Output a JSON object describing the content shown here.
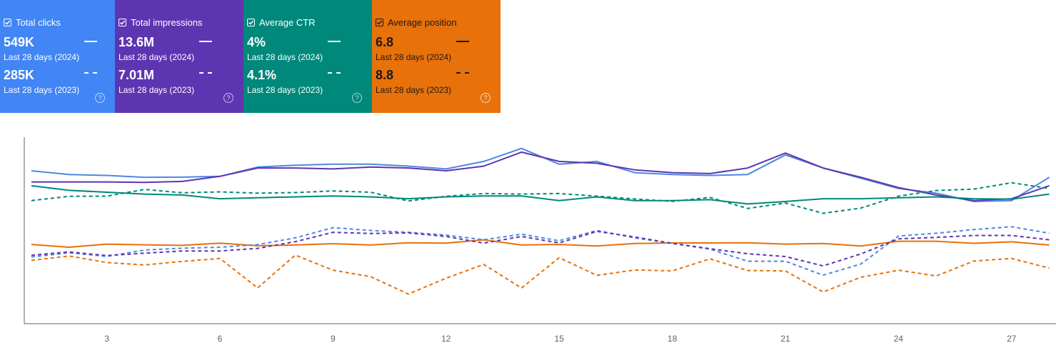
{
  "metrics": [
    {
      "label": "Total clicks",
      "current": "549K",
      "current_period": "Last 28 days (2024)",
      "previous": "285K",
      "previous_period": "Last 28 days (2023)",
      "color": "#4285f4"
    },
    {
      "label": "Total impressions",
      "current": "13.6M",
      "current_period": "Last 28 days (2024)",
      "previous": "7.01M",
      "previous_period": "Last 28 days (2023)",
      "color": "#5e35b1"
    },
    {
      "label": "Average CTR",
      "current": "4%",
      "current_period": "Last 28 days (2024)",
      "previous": "4.1%",
      "previous_period": "Last 28 days (2023)",
      "color": "#00897b"
    },
    {
      "label": "Average position",
      "current": "6.8",
      "current_period": "Last 28 days (2024)",
      "previous": "8.8",
      "previous_period": "Last 28 days (2023)",
      "color": "#e8710a"
    }
  ],
  "chart_data": {
    "type": "line",
    "x": [
      1,
      2,
      3,
      4,
      5,
      6,
      7,
      8,
      9,
      10,
      11,
      12,
      13,
      14,
      15,
      16,
      17,
      18,
      19,
      20,
      21,
      22,
      23,
      24,
      25,
      26,
      27,
      28
    ],
    "xticks": [
      "3",
      "6",
      "9",
      "12",
      "15",
      "18",
      "21",
      "24",
      "27"
    ],
    "xtick_values": [
      3,
      6,
      9,
      12,
      15,
      18,
      21,
      24,
      27
    ],
    "ylim": [
      0,
      100
    ],
    "series": [
      {
        "name": "Total clicks (2024)",
        "color": "#4e88e0",
        "dash": false,
        "values": [
          82,
          80,
          79.5,
          78.5,
          78.6,
          79,
          84,
          85,
          85.5,
          85.5,
          84.5,
          83,
          87,
          94,
          85.5,
          87,
          81,
          80,
          79.5,
          80,
          90.5,
          83.5,
          78,
          72.5,
          70,
          65.5,
          66,
          78.5
        ]
      },
      {
        "name": "Total impressions (2024)",
        "color": "#5e35b1",
        "dash": false,
        "values": [
          76,
          76,
          76,
          75.8,
          76.3,
          79,
          83.5,
          83.5,
          83,
          84,
          83.5,
          82,
          84.5,
          92,
          87,
          86,
          82.5,
          81,
          80.5,
          83.5,
          91.5,
          83.5,
          78.5,
          73,
          69,
          66,
          67,
          74
        ]
      },
      {
        "name": "Average CTR (2024)",
        "color": "#00897b",
        "dash": false,
        "values": [
          74,
          71.5,
          70.5,
          69.5,
          69,
          67,
          67.5,
          68,
          68.5,
          68,
          67,
          68,
          68.5,
          68.5,
          66,
          68,
          66,
          66,
          66.5,
          64.2,
          65.5,
          67,
          67,
          67.5,
          68,
          67,
          66.8,
          69.5
        ]
      },
      {
        "name": "Average position (2024)",
        "color": "#e8710a",
        "dash": false,
        "values": [
          42.5,
          41,
          42.7,
          42.3,
          42,
          43.2,
          41.8,
          42.2,
          42.9,
          42.2,
          43.4,
          43.2,
          45,
          42.2,
          42.5,
          41.7,
          43,
          43.3,
          43.3,
          43.4,
          42.7,
          43,
          41.7,
          44.2,
          44.2,
          43.1,
          43.9,
          42.2
        ]
      },
      {
        "name": "Total clicks (2023)",
        "color": "#4e88e0",
        "dash": true,
        "values": [
          35.8,
          38,
          36.1,
          39.5,
          40.5,
          41,
          42.4,
          46,
          51.5,
          50,
          49,
          47.5,
          45,
          48,
          44.5,
          50,
          46,
          43,
          40,
          33.5,
          33.5,
          26,
          32,
          47,
          48.5,
          50.5,
          52,
          48.5
        ]
      },
      {
        "name": "Total impressions (2023)",
        "color": "#5e35b1",
        "dash": true,
        "values": [
          36.7,
          38.5,
          36.5,
          37.8,
          39,
          39,
          40.4,
          44,
          49,
          48.4,
          48.7,
          46.8,
          43.2,
          46.8,
          43.3,
          49.5,
          46.5,
          43.1,
          40.2,
          37.5,
          36,
          31,
          37.4,
          45.5,
          46.3,
          47.3,
          47.3,
          45
        ]
      },
      {
        "name": "Average CTR (2023)",
        "color": "#00897b",
        "dash": true,
        "values": [
          66,
          68.3,
          68.4,
          72,
          70.2,
          70.7,
          70,
          70.3,
          71.2,
          70.5,
          65.8,
          68.3,
          69.8,
          69.5,
          69.8,
          68.4,
          66.9,
          65.6,
          67.7,
          61.8,
          64.7,
          59.2,
          62,
          68.4,
          71.4,
          72.2,
          75.6,
          72.5
        ]
      },
      {
        "name": "Average position (2023)",
        "color": "#e8710a",
        "dash": true,
        "values": [
          34,
          36.3,
          32.8,
          31.5,
          33.4,
          35,
          19.2,
          36.8,
          28.7,
          25.2,
          15.9,
          24.4,
          31.8,
          19.1,
          35.4,
          25.9,
          28.8,
          28.3,
          34.8,
          28.5,
          28.3,
          17,
          24.9,
          28.7,
          25.6,
          33.6,
          35,
          29.8
        ]
      }
    ]
  }
}
